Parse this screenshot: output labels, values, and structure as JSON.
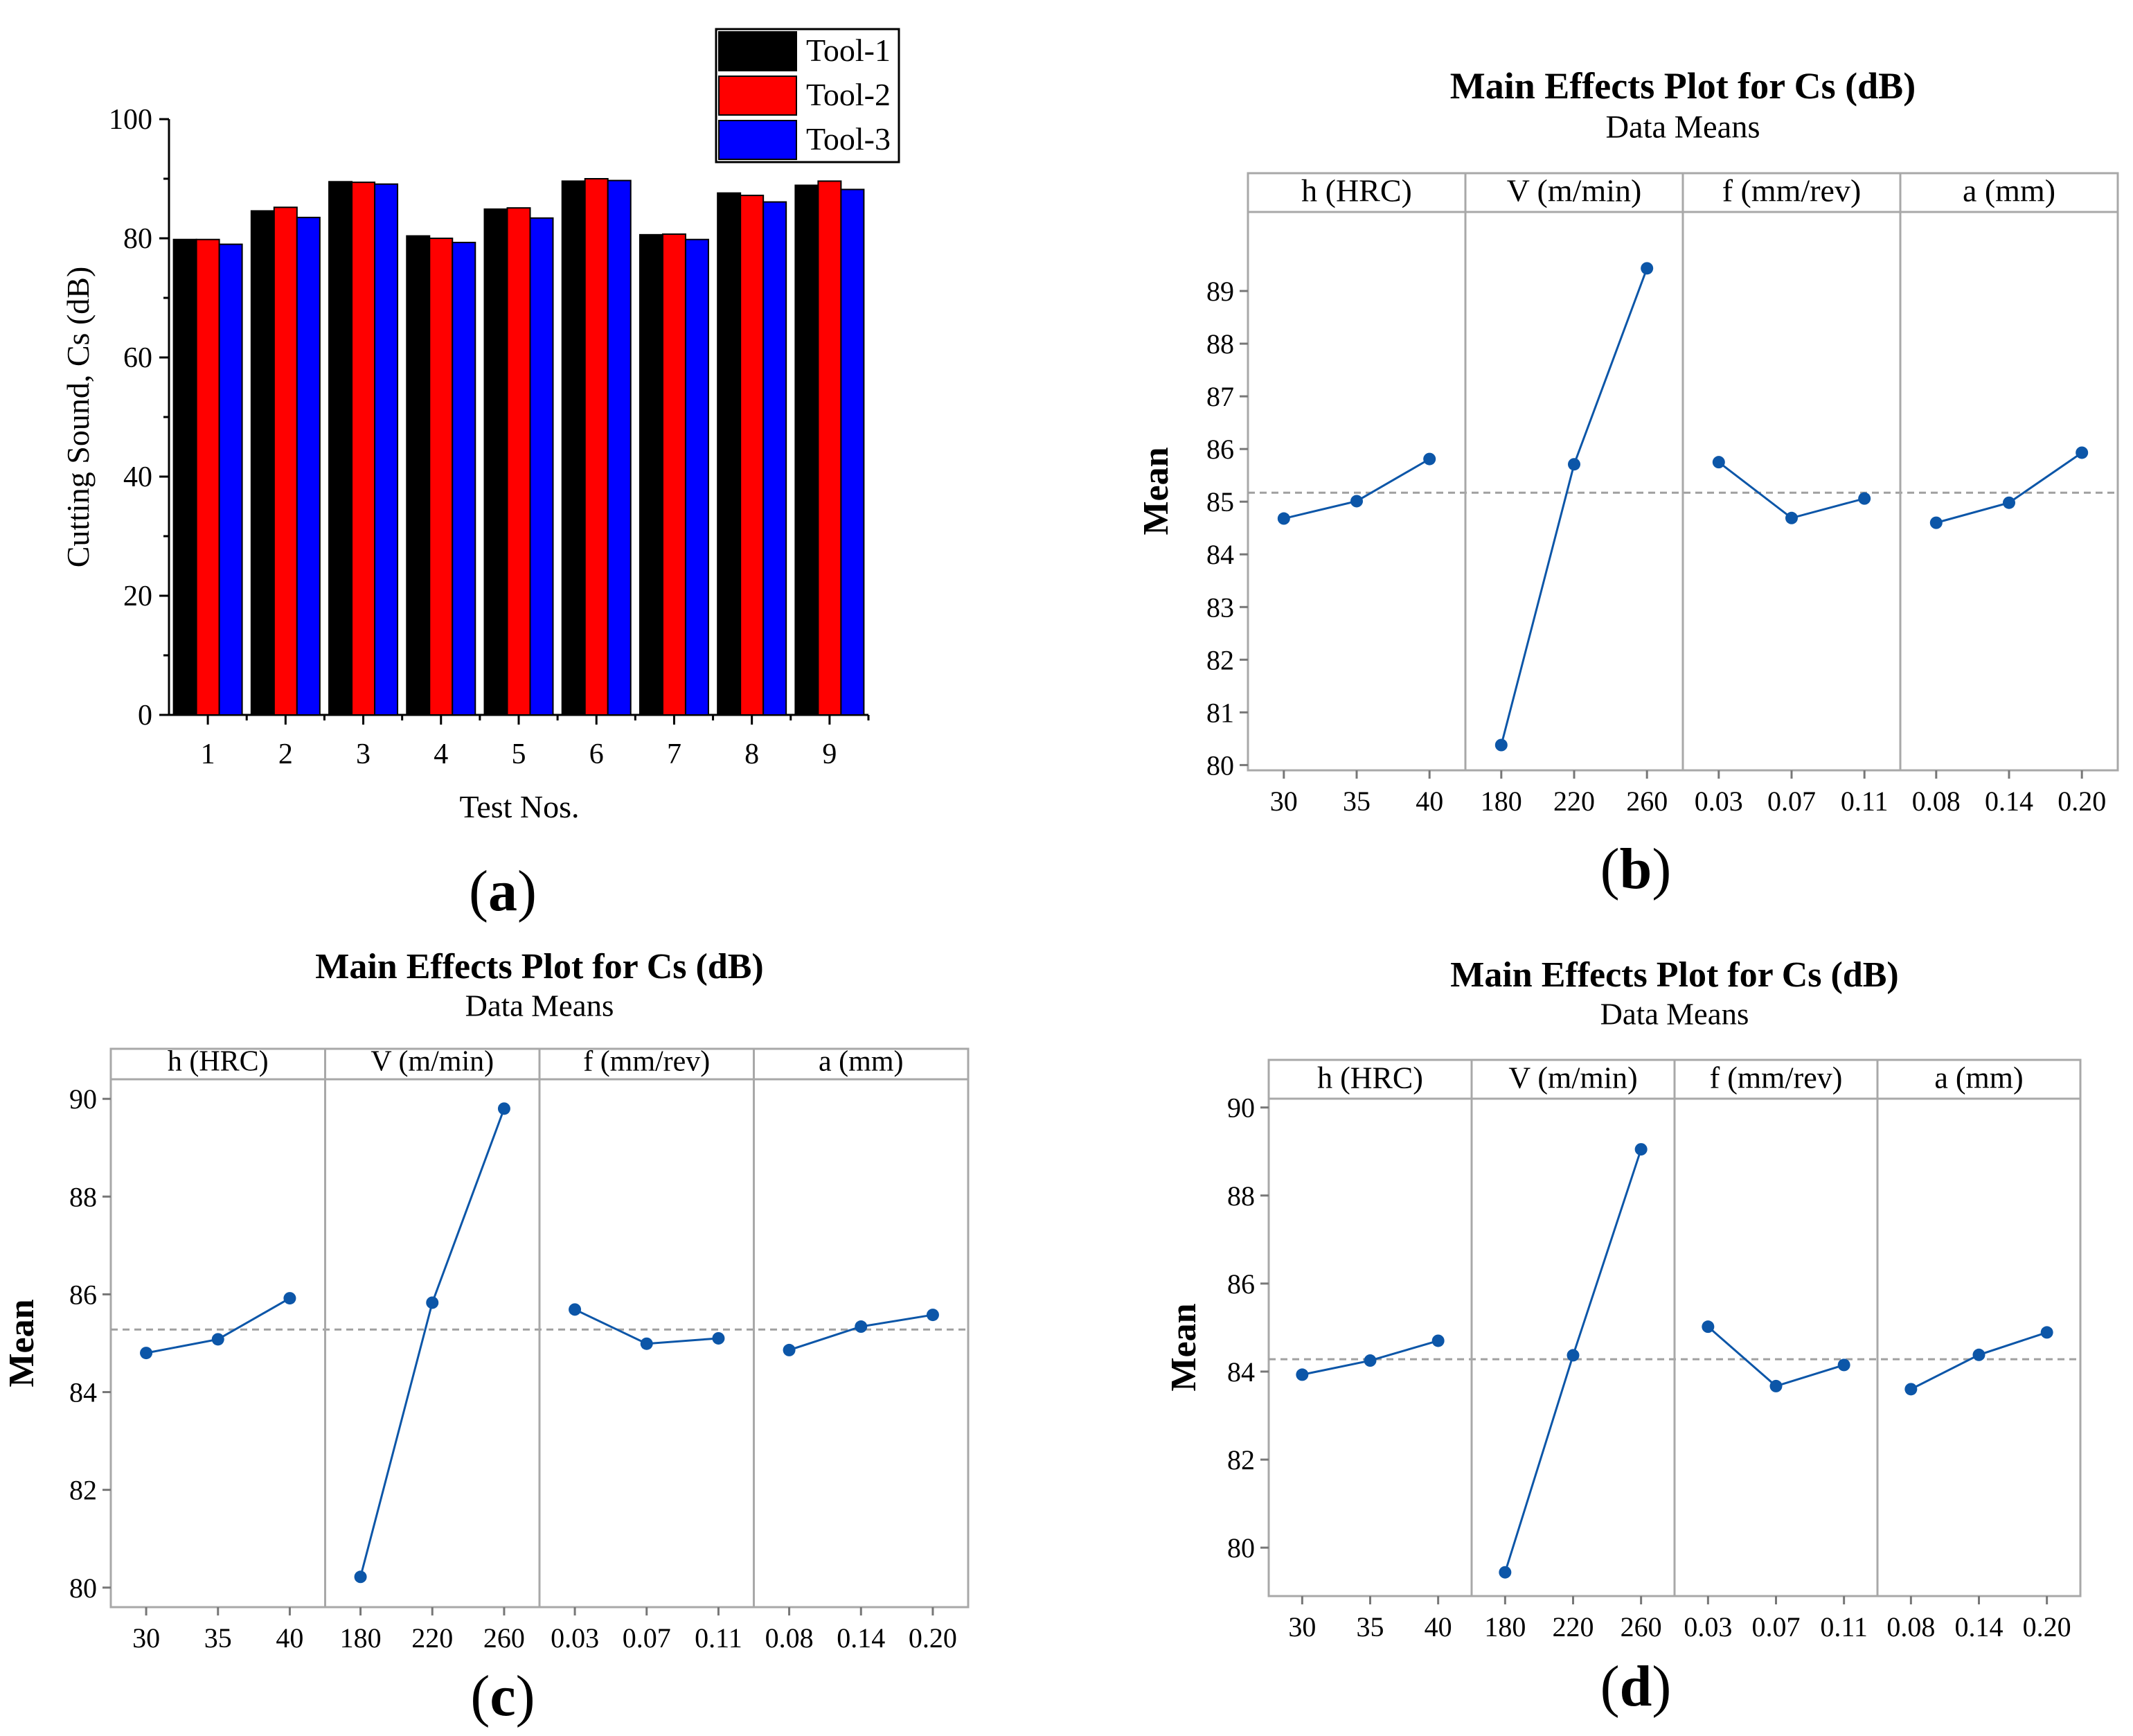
{
  "chart_data": [
    {
      "id": "a",
      "type": "bar",
      "caption": "a",
      "xlabel": "Test Nos.",
      "ylabel": "Cutting Sound, Cs (dB)",
      "ylim": [
        0,
        100
      ],
      "yticks": [
        0,
        20,
        40,
        60,
        80,
        100
      ],
      "categories": [
        "1",
        "2",
        "3",
        "4",
        "5",
        "6",
        "7",
        "8",
        "9"
      ],
      "legend_position": "top-right",
      "series": [
        {
          "name": "Tool-1",
          "color": "#000000",
          "values": [
            79.8,
            84.6,
            89.5,
            80.4,
            84.9,
            89.6,
            80.6,
            87.6,
            88.9
          ]
        },
        {
          "name": "Tool-2",
          "color": "#ff0000",
          "values": [
            79.8,
            85.2,
            89.4,
            80.0,
            85.1,
            90.0,
            80.7,
            87.2,
            89.6
          ]
        },
        {
          "name": "Tool-3",
          "color": "#0000ff",
          "values": [
            79.0,
            83.5,
            89.1,
            79.3,
            83.4,
            89.7,
            79.8,
            86.1,
            88.2
          ]
        }
      ]
    },
    {
      "id": "b",
      "type": "line",
      "caption": "b",
      "title": "Main Effects Plot for Cs (dB)",
      "subtitle": "Data Means",
      "ylabel": "Mean",
      "ylim": [
        79.9,
        90.5
      ],
      "yticks": [
        80,
        81,
        82,
        83,
        84,
        85,
        86,
        87,
        88,
        89
      ],
      "mean_line": 85.17,
      "panels": [
        {
          "label": "h (HRC)",
          "x": [
            "30",
            "35",
            "40"
          ],
          "values": [
            84.68,
            85.01,
            85.81
          ]
        },
        {
          "label": "V (m/min)",
          "x": [
            "180",
            "220",
            "260"
          ],
          "values": [
            80.38,
            85.71,
            89.43
          ]
        },
        {
          "label": "f (mm/rev)",
          "x": [
            "0.03",
            "0.07",
            "0.11"
          ],
          "values": [
            85.75,
            84.69,
            85.06
          ]
        },
        {
          "label": "a (mm)",
          "x": [
            "0.08",
            "0.14",
            "0.20"
          ],
          "values": [
            84.6,
            84.98,
            85.93
          ]
        }
      ]
    },
    {
      "id": "c",
      "type": "line",
      "caption": "c",
      "title": "Main Effects Plot for Cs (dB)",
      "subtitle": "Data Means",
      "ylabel": "Mean",
      "ylim": [
        79.6,
        90.4
      ],
      "yticks": [
        80,
        82,
        84,
        86,
        88,
        90
      ],
      "mean_line": 85.28,
      "panels": [
        {
          "label": "h (HRC)",
          "x": [
            "30",
            "35",
            "40"
          ],
          "values": [
            84.8,
            85.08,
            85.92
          ]
        },
        {
          "label": "V (m/min)",
          "x": [
            "180",
            "220",
            "260"
          ],
          "values": [
            80.22,
            85.83,
            89.8
          ]
        },
        {
          "label": "f (mm/rev)",
          "x": [
            "0.03",
            "0.07",
            "0.11"
          ],
          "values": [
            85.69,
            84.99,
            85.1
          ]
        },
        {
          "label": "a (mm)",
          "x": [
            "0.08",
            "0.14",
            "0.20"
          ],
          "values": [
            84.86,
            85.34,
            85.58
          ]
        }
      ]
    },
    {
      "id": "d",
      "type": "line",
      "caption": "d",
      "title": "Main Effects Plot for Cs (dB)",
      "subtitle": "Data Means",
      "ylabel": "Mean",
      "ylim": [
        78.9,
        90.2
      ],
      "yticks": [
        80,
        82,
        84,
        86,
        88,
        90
      ],
      "mean_line": 84.28,
      "panels": [
        {
          "label": "h (HRC)",
          "x": [
            "30",
            "35",
            "40"
          ],
          "values": [
            83.93,
            84.25,
            84.7
          ]
        },
        {
          "label": "V (m/min)",
          "x": [
            "180",
            "220",
            "260"
          ],
          "values": [
            79.44,
            84.37,
            89.05
          ]
        },
        {
          "label": "f (mm/rev)",
          "x": [
            "0.03",
            "0.07",
            "0.11"
          ],
          "values": [
            85.02,
            83.67,
            84.15
          ]
        },
        {
          "label": "a (mm)",
          "x": [
            "0.08",
            "0.14",
            "0.20"
          ],
          "values": [
            83.6,
            84.38,
            84.89
          ]
        }
      ]
    }
  ]
}
